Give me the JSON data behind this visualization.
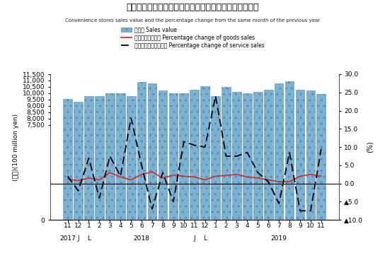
{
  "title_ja": "コンビニエンスストア販売額・前年同月比増減率の推移",
  "title_en": "Convenience stores sales value and the percentage change from the same month of the previous year",
  "ylabel_left": "(億円)(100 million yen)",
  "ylabel_right": "(%)",
  "x_labels": [
    "11",
    "12",
    "1",
    "2",
    "3",
    "4",
    "5",
    "6",
    "7",
    "8",
    "9",
    "10",
    "11",
    "12",
    "1",
    "2",
    "3",
    "4",
    "5",
    "6",
    "7",
    "8",
    "9",
    "10",
    "11"
  ],
  "bar_values": [
    9530,
    9340,
    9750,
    9750,
    9980,
    10000,
    9750,
    10870,
    10750,
    10200,
    10000,
    10000,
    10300,
    10530,
    9780,
    10480,
    10130,
    10000,
    10130,
    10280,
    10780,
    10950,
    10280,
    10200,
    9950
  ],
  "goods_pct": [
    1.2,
    0.8,
    1.5,
    1.0,
    3.0,
    1.8,
    1.0,
    2.5,
    3.2,
    1.5,
    2.3,
    2.0,
    1.8,
    1.0,
    2.0,
    2.2,
    2.5,
    1.8,
    1.5,
    1.0,
    0.5,
    0.5,
    2.0,
    2.5,
    2.0
  ],
  "service_pct": [
    2.0,
    -2.0,
    7.0,
    -4.0,
    7.5,
    2.0,
    18.0,
    5.0,
    -7.0,
    3.0,
    -5.0,
    11.5,
    10.5,
    10.0,
    24.0,
    7.5,
    7.5,
    8.5,
    3.0,
    0.5,
    -5.5,
    8.5,
    -7.5,
    -7.5,
    9.5
  ],
  "ylim_left": [
    0,
    11500
  ],
  "ylim_right": [
    -10.0,
    30.0
  ],
  "left_yticks": [
    0,
    7500,
    8000,
    8500,
    9000,
    9500,
    10000,
    10500,
    11000,
    11500
  ],
  "right_yticks": [
    30.0,
    25.0,
    20.0,
    15.0,
    10.0,
    5.0,
    0.0,
    -5.0,
    -10.0
  ],
  "bar_color": "#7ab2d4",
  "goods_color": "#cc3333",
  "service_color": "#000000",
  "legend_bar": "販売額 Sales value",
  "legend_goods": "商品販売額増減率 Percentage change of goods sales",
  "legend_service": "サービス売上高増減率 Percentage change of service sales"
}
